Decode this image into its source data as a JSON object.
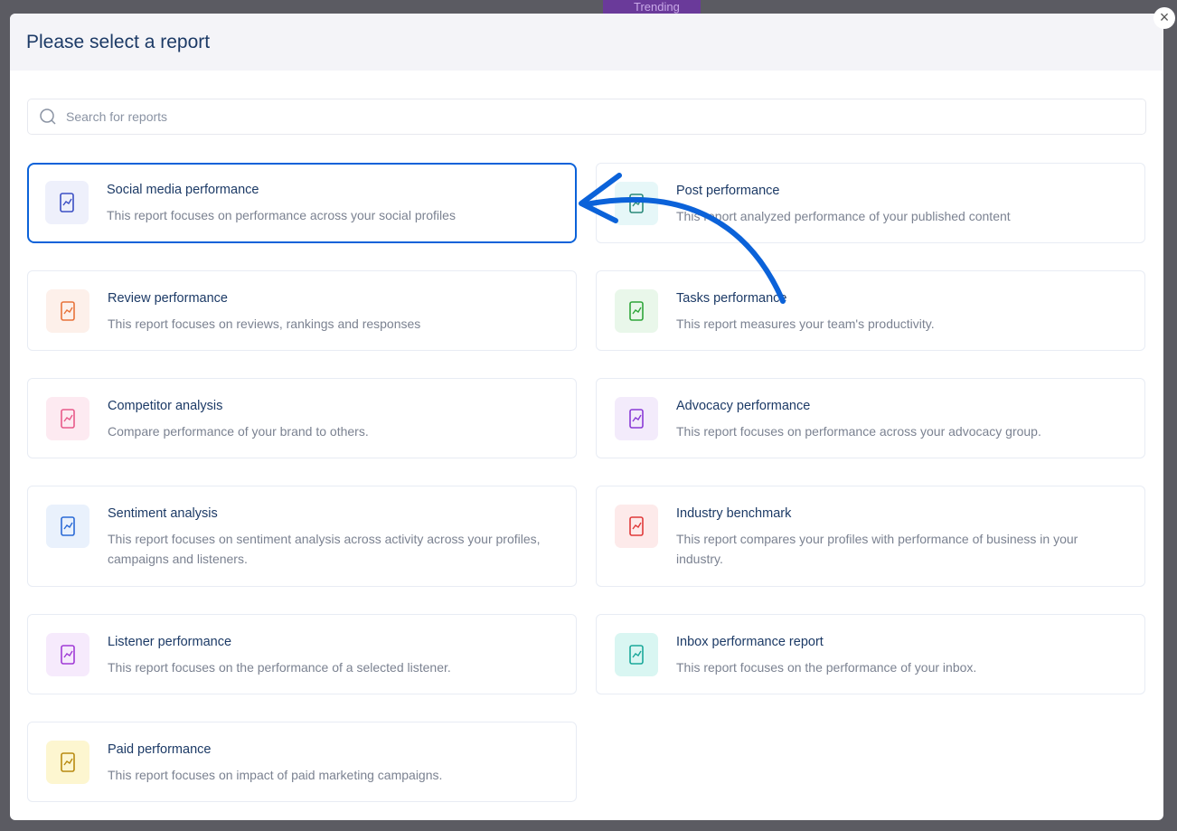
{
  "background": {
    "trending_label": "Trending"
  },
  "modal": {
    "title": "Please select a report",
    "close_label": "×",
    "search": {
      "placeholder": "Search for reports",
      "value": ""
    },
    "reports": [
      {
        "title": "Social media performance",
        "description": "This report focuses on performance across your social profiles",
        "icon": "phone-analytics-icon",
        "color": "#3b4fc4",
        "bg": "#eef0fb",
        "selected": true
      },
      {
        "title": "Post performance",
        "description": "This report analyzed performance of your published content",
        "icon": "document-list-icon",
        "color": "#2a8a7a",
        "bg": "#e6f7f8"
      },
      {
        "title": "Review performance",
        "description": "This report focuses on reviews, rankings and responses",
        "icon": "review-star-icon",
        "color": "#e8733a",
        "bg": "#fdf0ea"
      },
      {
        "title": "Tasks performance",
        "description": "This report measures your team's productivity.",
        "icon": "team-hierarchy-icon",
        "color": "#2fa63a",
        "bg": "#e9f7ea"
      },
      {
        "title": "Competitor analysis",
        "description": "Compare performance of your brand to others.",
        "icon": "phone-chart-icon",
        "color": "#e85a8a",
        "bg": "#fdeaf1"
      },
      {
        "title": "Advocacy performance",
        "description": "This report focuses on performance across your advocacy group.",
        "icon": "megaphone-dollar-icon",
        "color": "#8a3ad6",
        "bg": "#f3ebfb"
      },
      {
        "title": "Sentiment analysis",
        "description": "This report focuses on sentiment analysis across activity across your profiles, campaigns and listeners.",
        "icon": "sentiment-faces-icon",
        "color": "#2a6ad6",
        "bg": "#e9f1fc"
      },
      {
        "title": "Industry benchmark",
        "description": "This report compares your profiles with performance of business in your industry.",
        "icon": "benchmark-chart-icon",
        "color": "#e03a3a",
        "bg": "#fdeaea"
      },
      {
        "title": "Listener performance",
        "description": "This report focuses on the performance of a selected listener.",
        "icon": "listener-audio-icon",
        "color": "#a03ad6",
        "bg": "#f6eafc"
      },
      {
        "title": "Inbox performance report",
        "description": "This report focuses on the performance of your inbox.",
        "icon": "inbox-chat-icon",
        "color": "#1aa89a",
        "bg": "#d9f6f2"
      },
      {
        "title": "Paid performance",
        "description": "This report focuses on impact of paid marketing campaigns.",
        "icon": "paid-chart-icon",
        "color": "#b88a10",
        "bg": "#fdf6d0"
      }
    ]
  },
  "annotation": {
    "arrow_color": "#0b62d9"
  }
}
